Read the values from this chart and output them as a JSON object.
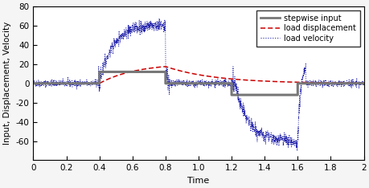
{
  "title": "",
  "xlabel": "Time",
  "ylabel": "Input, Displacement, Velocity",
  "xlim": [
    0,
    2
  ],
  "ylim": [
    -80,
    80
  ],
  "xticks": [
    0,
    0.2,
    0.4,
    0.6,
    0.8,
    1.0,
    1.2,
    1.4,
    1.6,
    1.8,
    2.0
  ],
  "yticks": [
    -60,
    -40,
    -20,
    0,
    20,
    40,
    60,
    80
  ],
  "step_color": "#777777",
  "disp_color": "#cc0000",
  "vel_color": "#2222aa",
  "step_amplitude_1": 12,
  "step_amplitude_2": -12,
  "step_t1_start": 0.4,
  "step_t1_end": 0.8,
  "step_t2_start": 1.2,
  "step_t2_end": 1.6,
  "vel_plateau": 61,
  "disp_peak": 21,
  "legend_labels": [
    "stepwise input",
    "load displacement",
    "load velocity"
  ],
  "figsize": [
    4.6,
    2.34
  ],
  "dpi": 100
}
